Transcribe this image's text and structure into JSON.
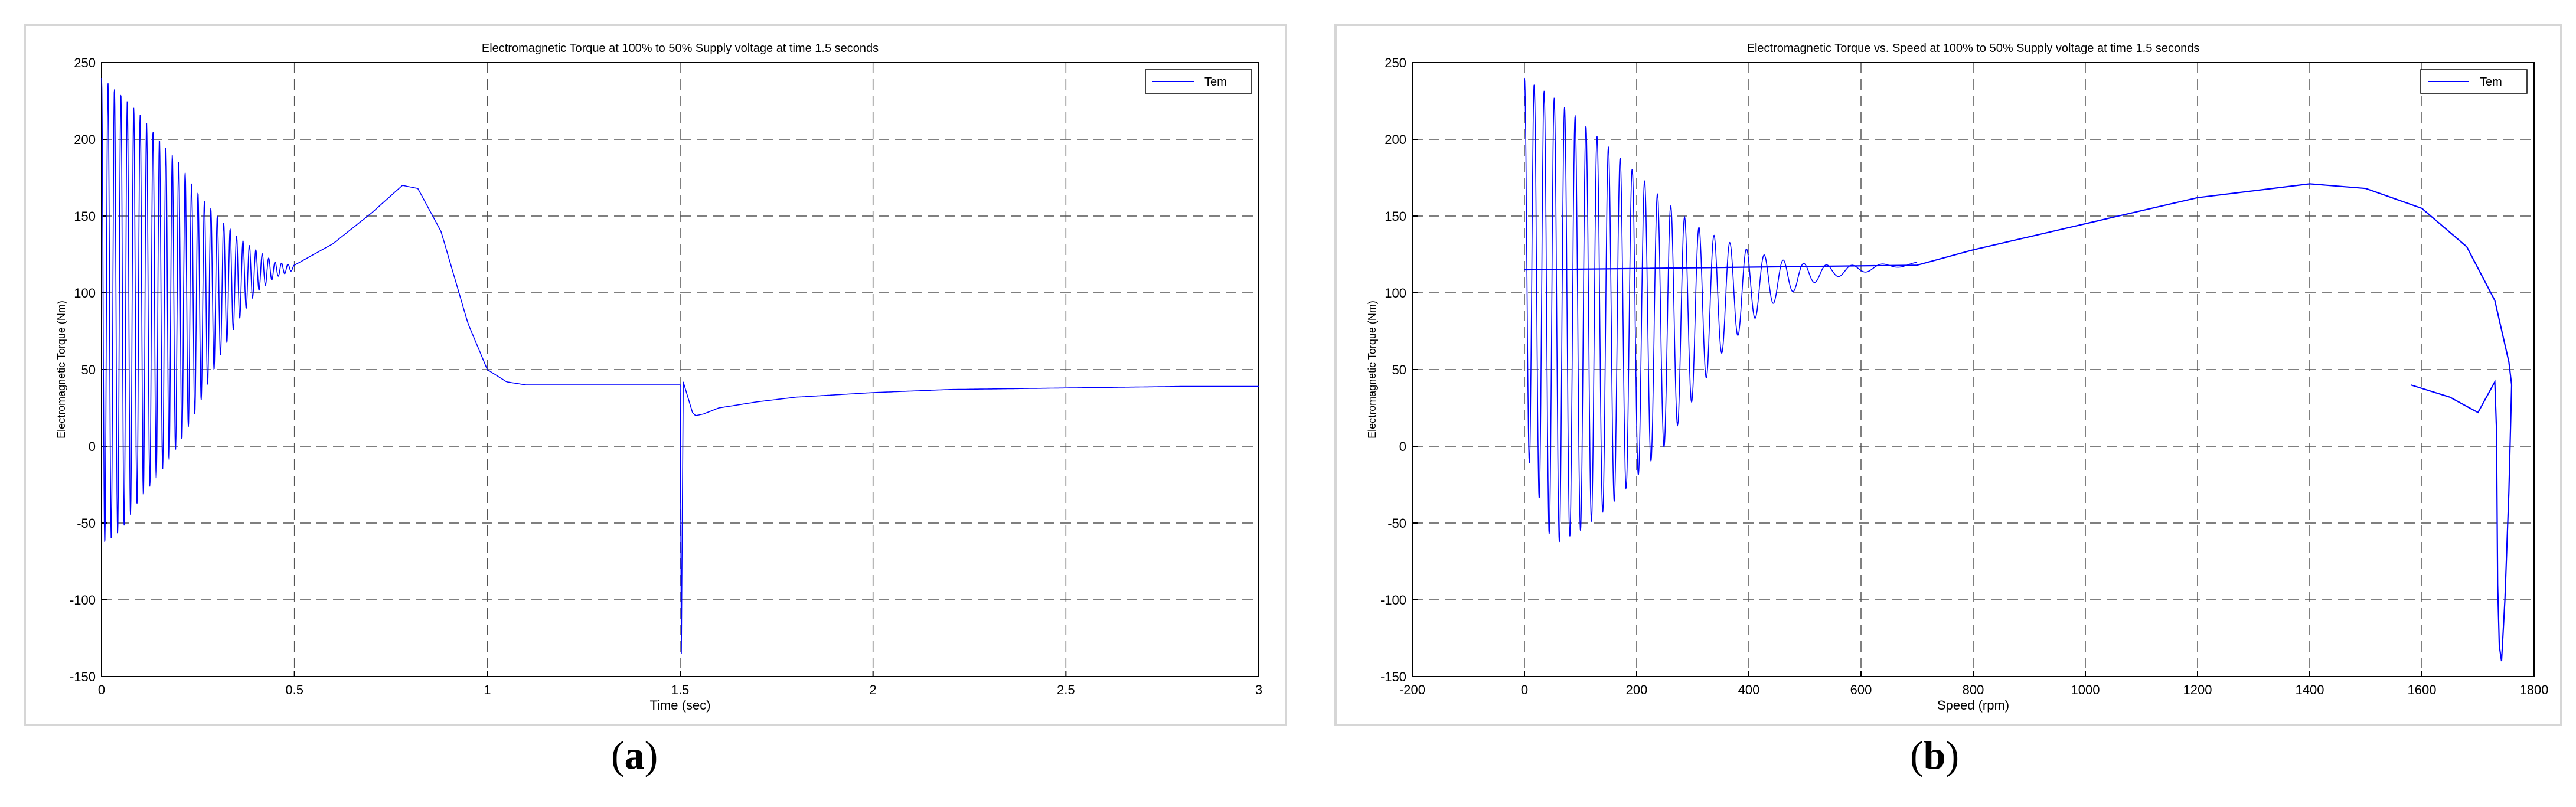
{
  "chart_data": [
    {
      "type": "line",
      "panel_label": "a",
      "title": "Electromagnetic Torque at 100% to 50% Supply voltage at time 1.5 seconds",
      "xlabel": "Time (sec)",
      "ylabel": "Electromagnetic Torque (Nm)",
      "xlim": [
        0,
        3
      ],
      "ylim": [
        -150,
        250
      ],
      "xticks": [
        0,
        0.5,
        1,
        1.5,
        2,
        2.5,
        3
      ],
      "yticks": [
        -150,
        -100,
        -50,
        0,
        50,
        100,
        150,
        200,
        250
      ],
      "grid": true,
      "legend": "top-right",
      "series": [
        {
          "name": "Tem",
          "color": "#0000ff",
          "description_points": {
            "x": [
              0,
              0.02,
              0.05,
              0.1,
              0.2,
              0.3,
              0.4,
              0.45,
              0.5,
              0.6,
              0.7,
              0.78,
              0.82,
              0.88,
              0.95,
              1.0,
              1.05,
              1.1,
              1.2,
              1.3,
              1.4,
              1.5,
              1.505,
              1.51,
              1.52,
              1.54,
              1.56,
              1.6,
              1.7,
              1.8,
              2.0,
              2.2,
              2.5,
              2.8,
              3.0
            ],
            "y": [
              100,
              238,
              230,
              215,
              190,
              160,
              130,
              118,
              118,
              132,
              152,
              170,
              168,
              140,
              80,
              50,
              42,
              40,
              40,
              40,
              40,
              40,
              -135,
              42,
              25,
              20,
              21,
              25,
              29,
              32,
              35,
              37,
              38,
              39,
              39
            ]
          },
          "oscillation_envelope": {
            "t": [
              0,
              0.05,
              0.1,
              0.15,
              0.2,
              0.25,
              0.3,
              0.35,
              0.4,
              0.45,
              0.5
            ],
            "upper": [
              240,
              230,
              216,
              200,
              185,
              165,
              150,
              137,
              128,
              120,
              118
            ],
            "lower": [
              -65,
              -55,
              -35,
              -18,
              0,
              25,
              55,
              80,
              100,
              110,
              115
            ]
          }
        }
      ]
    },
    {
      "type": "line",
      "panel_label": "b",
      "title": "Electromagnetic Torque vs. Speed at 100% to 50% Supply voltage at time 1.5 seconds",
      "xlabel": "Speed (rpm)",
      "ylabel": "Electromagnetic Torque (Nm)",
      "xlim": [
        -200,
        1800
      ],
      "ylim": [
        -150,
        250
      ],
      "xticks": [
        -200,
        0,
        200,
        400,
        600,
        800,
        1000,
        1200,
        1400,
        1600,
        1800
      ],
      "yticks": [
        -150,
        -100,
        -50,
        0,
        50,
        100,
        150,
        200,
        250
      ],
      "grid": true,
      "legend": "top-right",
      "series": [
        {
          "name": "Tem",
          "color": "#0000ff",
          "description_points": {
            "x": [
              0,
              700,
              800,
              1000,
              1200,
              1400,
              1500,
              1600,
              1680,
              1730,
              1755,
              1760
            ],
            "y": [
              115,
              118,
              128,
              145,
              162,
              171,
              168,
              155,
              130,
              95,
              55,
              40
            ]
          },
          "oscillation_envelope": {
            "speed": [
              0,
              50,
              100,
              150,
              200,
              250,
              300,
              350,
              400,
              450,
              500,
              550,
              600,
              650,
              700
            ],
            "upper": [
              240,
              228,
              212,
              195,
              178,
              160,
              145,
              135,
              128,
              122,
              119,
              118,
              118,
              119,
              120
            ],
            "lower": [
              0,
              -65,
              -55,
              -40,
              -20,
              0,
              30,
              60,
              80,
              95,
              105,
              110,
              113,
              116,
              118
            ]
          },
          "dip_branch": {
            "x": [
              1760,
              1755,
              1748,
              1742,
              1738,
              1735,
              1733,
              1730,
              1700,
              1650,
              1580
            ],
            "y": [
              40,
              -30,
              -100,
              -140,
              -130,
              -90,
              10,
              42,
              22,
              32,
              40
            ]
          }
        }
      ]
    }
  ]
}
